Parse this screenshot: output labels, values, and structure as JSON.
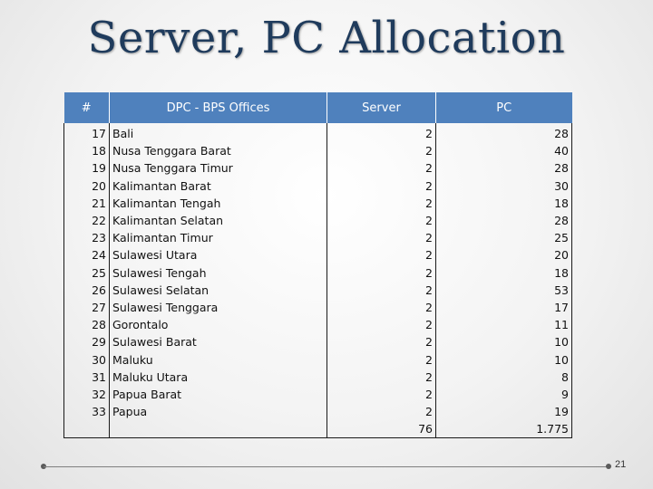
{
  "slide": {
    "title": "Server, PC Allocation",
    "page_number": "21"
  },
  "table": {
    "headers": {
      "no": "#",
      "office": "DPC - BPS Offices",
      "server": "Server",
      "pc": "PC"
    },
    "rows": [
      {
        "no": "17",
        "office": "Bali",
        "server": "2",
        "pc": "28"
      },
      {
        "no": "18",
        "office": "Nusa Tenggara Barat",
        "server": "2",
        "pc": "40"
      },
      {
        "no": "19",
        "office": "Nusa Tenggara Timur",
        "server": "2",
        "pc": "28"
      },
      {
        "no": "20",
        "office": "Kalimantan Barat",
        "server": "2",
        "pc": "30"
      },
      {
        "no": "21",
        "office": "Kalimantan Tengah",
        "server": "2",
        "pc": "18"
      },
      {
        "no": "22",
        "office": "Kalimantan Selatan",
        "server": "2",
        "pc": "28"
      },
      {
        "no": "23",
        "office": "Kalimantan Timur",
        "server": "2",
        "pc": "25"
      },
      {
        "no": "24",
        "office": "Sulawesi Utara",
        "server": "2",
        "pc": "20"
      },
      {
        "no": "25",
        "office": "Sulawesi Tengah",
        "server": "2",
        "pc": "18"
      },
      {
        "no": "26",
        "office": "Sulawesi Selatan",
        "server": "2",
        "pc": "53"
      },
      {
        "no": "27",
        "office": "Sulawesi Tenggara",
        "server": "2",
        "pc": "17"
      },
      {
        "no": "28",
        "office": "Gorontalo",
        "server": "2",
        "pc": "11"
      },
      {
        "no": "29",
        "office": "Sulawesi Barat",
        "server": "2",
        "pc": "10"
      },
      {
        "no": "30",
        "office": "Maluku",
        "server": "2",
        "pc": "10"
      },
      {
        "no": "31",
        "office": "Maluku Utara",
        "server": "2",
        "pc": "8"
      },
      {
        "no": "32",
        "office": "Papua Barat",
        "server": "2",
        "pc": "9"
      },
      {
        "no": "33",
        "office": "Papua",
        "server": "2",
        "pc": "19"
      }
    ],
    "totals": {
      "server": "76",
      "pc": "1.775"
    }
  },
  "colors": {
    "header_bg": "#4f81bd",
    "title": "#1f3b5c"
  }
}
